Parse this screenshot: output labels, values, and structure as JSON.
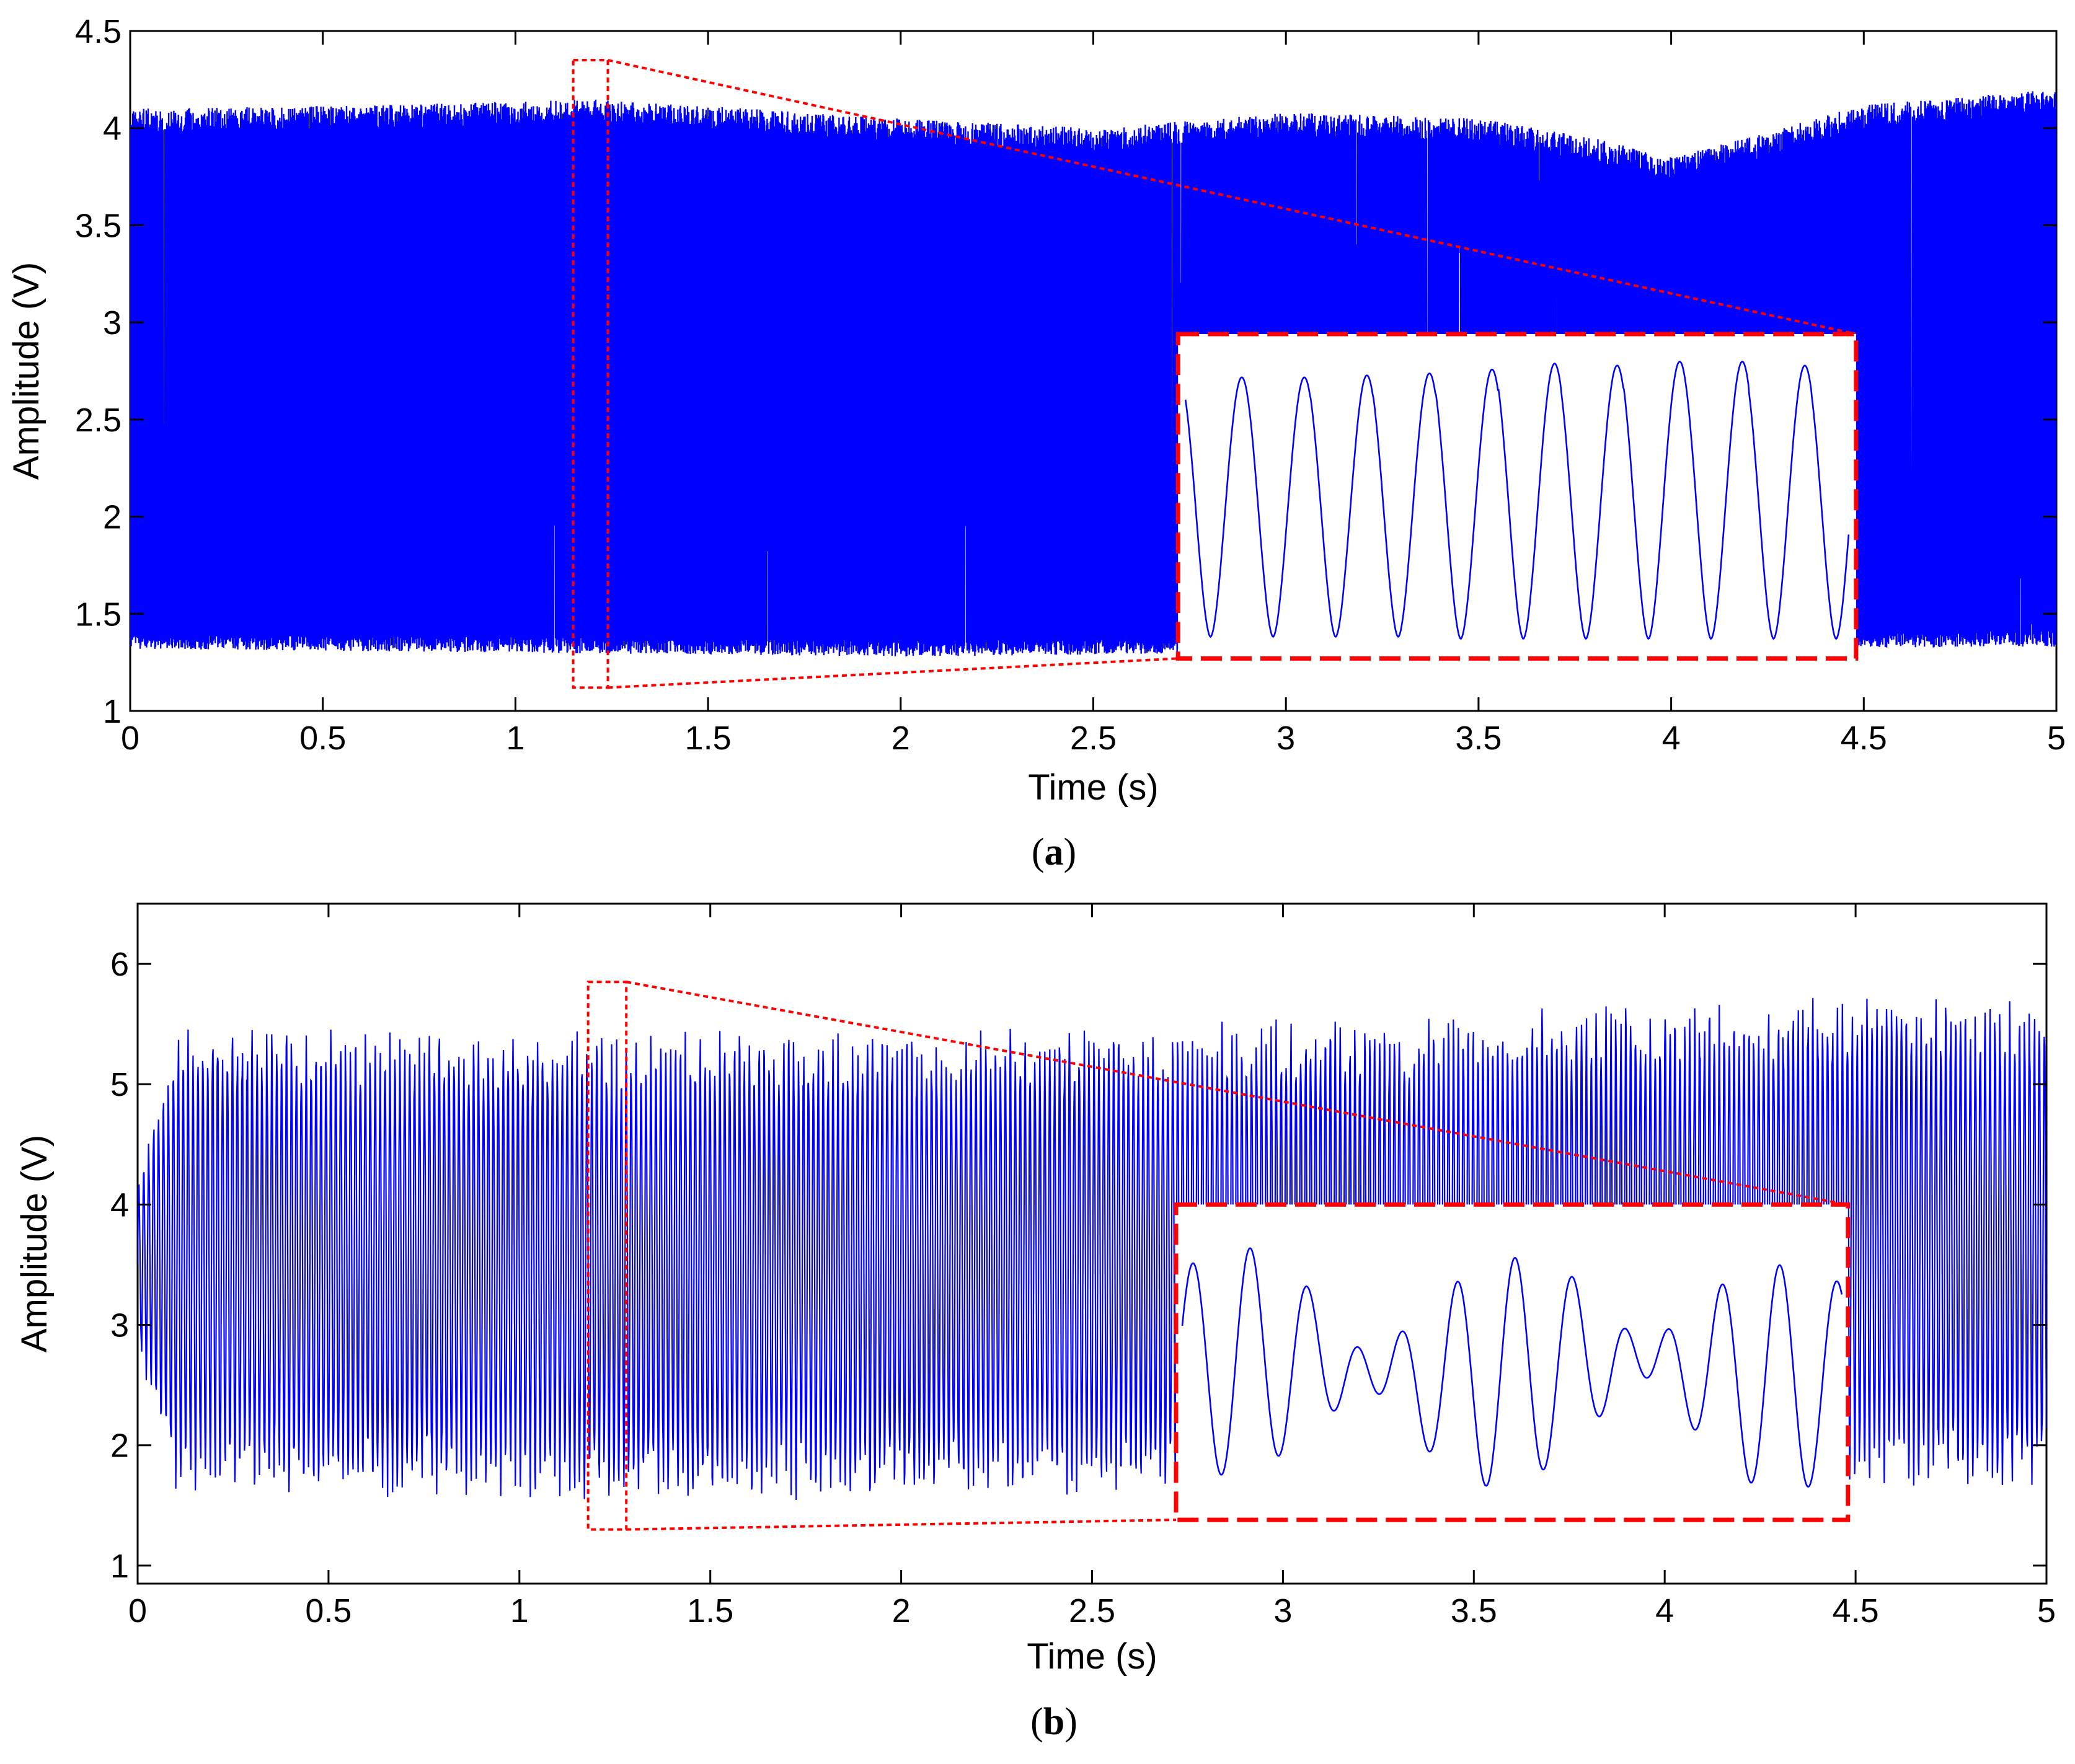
{
  "chart_data": [
    {
      "type": "line",
      "panel_label": "a",
      "title": "",
      "xlabel": "Time (s)",
      "ylabel": "Amplitude (V)",
      "xlim": [
        0,
        5
      ],
      "ylim": [
        1,
        4.5
      ],
      "xticks": [
        "0",
        "0.5",
        "1",
        "1.5",
        "2",
        "2.5",
        "3",
        "3.5",
        "4",
        "4.5",
        "5"
      ],
      "yticks": [
        "1",
        "1.5",
        "2",
        "2.5",
        "3",
        "3.5",
        "4",
        "4.5"
      ],
      "grid": false,
      "series_color": "#0000ff",
      "signal": {
        "baseline_min": 1.33,
        "baseline_max": 4.1,
        "envelope_top": [
          [
            0,
            4.1
          ],
          [
            0.7,
            4.12
          ],
          [
            1.2,
            4.15
          ],
          [
            2.0,
            4.05
          ],
          [
            2.5,
            4.0
          ],
          [
            3.0,
            4.08
          ],
          [
            3.5,
            4.05
          ],
          [
            3.8,
            3.95
          ],
          [
            4.0,
            3.85
          ],
          [
            4.2,
            3.95
          ],
          [
            4.5,
            4.12
          ],
          [
            5.0,
            4.2
          ]
        ],
        "envelope_bottom": [
          [
            0,
            1.32
          ],
          [
            1.0,
            1.3
          ],
          [
            2.0,
            1.28
          ],
          [
            3.0,
            1.3
          ],
          [
            4.0,
            1.32
          ],
          [
            5.0,
            1.33
          ]
        ]
      },
      "zoom": {
        "source_x": [
          1.15,
          1.24
        ],
        "source_y": [
          1.12,
          4.35
        ],
        "inset_x": [
          2.72,
          4.48
        ],
        "inset_y": [
          1.27,
          2.94
        ],
        "inset_ylim": [
          1.35,
          3.0
        ],
        "inset_peaks": [
          2.78,
          2.78,
          2.79,
          2.8,
          2.82,
          2.85,
          2.84,
          2.86,
          2.86,
          2.84,
          2.83
        ],
        "inset_troughs": [
          1.46,
          1.46,
          1.46,
          1.46,
          1.45,
          1.45,
          1.45,
          1.45,
          1.45,
          1.45
        ],
        "color": "#ff0000"
      }
    },
    {
      "type": "line",
      "panel_label": "b",
      "title": "",
      "xlabel": "Time (s)",
      "ylabel": "Amplitude (V)",
      "xlim": [
        0,
        5
      ],
      "ylim": [
        0.85,
        6.5
      ],
      "xticks": [
        "0",
        "0.5",
        "1",
        "1.5",
        "2",
        "2.5",
        "3",
        "3.5",
        "4",
        "4.5",
        "5"
      ],
      "yticks": [
        "1",
        "2",
        "3",
        "4",
        "5",
        "6"
      ],
      "grid": false,
      "series_color": "#0000ff",
      "signal": {
        "envelope_top": [
          [
            0,
            4.2
          ],
          [
            0.1,
            5.5
          ],
          [
            0.5,
            5.5
          ],
          [
            1.0,
            5.45
          ],
          [
            1.5,
            5.45
          ],
          [
            2.0,
            5.45
          ],
          [
            2.5,
            5.5
          ],
          [
            3.0,
            5.55
          ],
          [
            3.5,
            5.6
          ],
          [
            4.0,
            5.7
          ],
          [
            4.5,
            5.75
          ],
          [
            5.0,
            5.75
          ]
        ],
        "envelope_bottom": [
          [
            0,
            2.8
          ],
          [
            0.1,
            1.6
          ],
          [
            0.5,
            1.55
          ],
          [
            1.0,
            1.55
          ],
          [
            1.5,
            1.5
          ],
          [
            2.0,
            1.55
          ],
          [
            2.5,
            1.55
          ],
          [
            3.0,
            1.55
          ],
          [
            3.5,
            1.55
          ],
          [
            4.0,
            1.6
          ],
          [
            4.5,
            1.6
          ],
          [
            5.0,
            1.65
          ]
        ]
      },
      "zoom": {
        "source_x": [
          1.18,
          1.28
        ],
        "source_y": [
          1.3,
          5.85
        ],
        "inset_x": [
          2.72,
          4.48
        ],
        "inset_y": [
          1.38,
          4.0
        ],
        "inset_ylim": [
          1.45,
          3.95
        ],
        "color": "#ff0000"
      }
    }
  ]
}
